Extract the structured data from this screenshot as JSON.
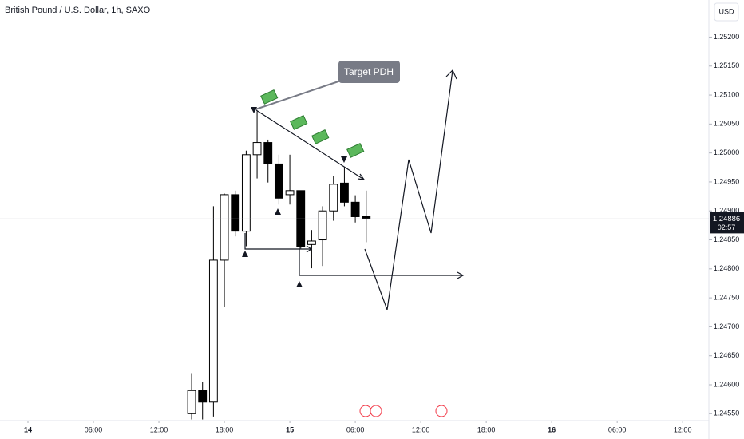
{
  "chart_data": {
    "type": "candlestick",
    "title": "British Pound / U.S. Dollar, 1h, SAXO",
    "currency": "USD",
    "x": [
      15,
      16,
      17,
      18,
      19,
      20,
      21,
      22,
      23,
      24,
      25,
      26,
      27,
      28,
      29,
      30,
      31
    ],
    "open": [
      1.2455,
      1.2459,
      1.2457,
      1.24815,
      1.24928,
      1.24865,
      1.24997,
      1.25018,
      1.24981,
      1.24928,
      1.24935,
      1.24842,
      1.2485,
      1.249,
      1.24948,
      1.24915,
      1.24891
    ],
    "high": [
      1.2462,
      1.24605,
      1.24908,
      1.2493,
      1.24935,
      1.25004,
      1.25072,
      1.25023,
      1.24997,
      1.24997,
      1.24935,
      1.24867,
      1.24908,
      1.2496,
      1.24976,
      1.24927,
      1.24935
    ],
    "low": [
      1.2454,
      1.2454,
      1.24545,
      1.24734,
      1.24856,
      1.24839,
      1.24956,
      1.24949,
      1.24911,
      1.24911,
      1.24835,
      1.24801,
      1.24805,
      1.24883,
      1.24908,
      1.2488,
      1.24846
    ],
    "close": [
      1.2459,
      1.2457,
      1.24815,
      1.24928,
      1.24865,
      1.24997,
      1.25018,
      1.24981,
      1.24922,
      1.24935,
      1.24839,
      1.24848,
      1.249,
      1.24946,
      1.24915,
      1.2489,
      1.24886
    ],
    "up_color": "#ffffff",
    "down_color": "#000000",
    "xlim": [
      -2.56,
      62.4
    ],
    "xticks": [
      {
        "value": 0,
        "label": "14"
      },
      {
        "value": 6,
        "label": "06:00"
      },
      {
        "value": 12,
        "label": "12:00"
      },
      {
        "value": 18,
        "label": "18:00"
      },
      {
        "value": 24,
        "label": "15"
      },
      {
        "value": 30,
        "label": "06:00"
      },
      {
        "value": 36,
        "label": "12:00"
      },
      {
        "value": 42,
        "label": "18:00"
      },
      {
        "value": 48,
        "label": "16"
      },
      {
        "value": 54,
        "label": "06:00"
      },
      {
        "value": 60,
        "label": "12:00"
      }
    ],
    "ylim": [
      1.24538,
      1.25264
    ],
    "yticks": [
      {
        "value": 1.2455,
        "label": "1.24550"
      },
      {
        "value": 1.246,
        "label": "1.24600"
      },
      {
        "value": 1.2465,
        "label": "1.24650"
      },
      {
        "value": 1.247,
        "label": "1.24700"
      },
      {
        "value": 1.2475,
        "label": "1.24750"
      },
      {
        "value": 1.248,
        "label": "1.24800"
      },
      {
        "value": 1.2485,
        "label": "1.24850"
      },
      {
        "value": 1.249,
        "label": "1.24900"
      },
      {
        "value": 1.2495,
        "label": "1.24950"
      },
      {
        "value": 1.25,
        "label": "1.25000"
      },
      {
        "value": 1.2505,
        "label": "1.25050"
      },
      {
        "value": 1.251,
        "label": "1.25100"
      },
      {
        "value": 1.2515,
        "label": "1.25150"
      },
      {
        "value": 1.252,
        "label": "1.25200"
      }
    ],
    "last_price": {
      "value": 1.24886,
      "label": "1.24886"
    },
    "countdown": "02:57",
    "annotation": "Target PDH"
  }
}
